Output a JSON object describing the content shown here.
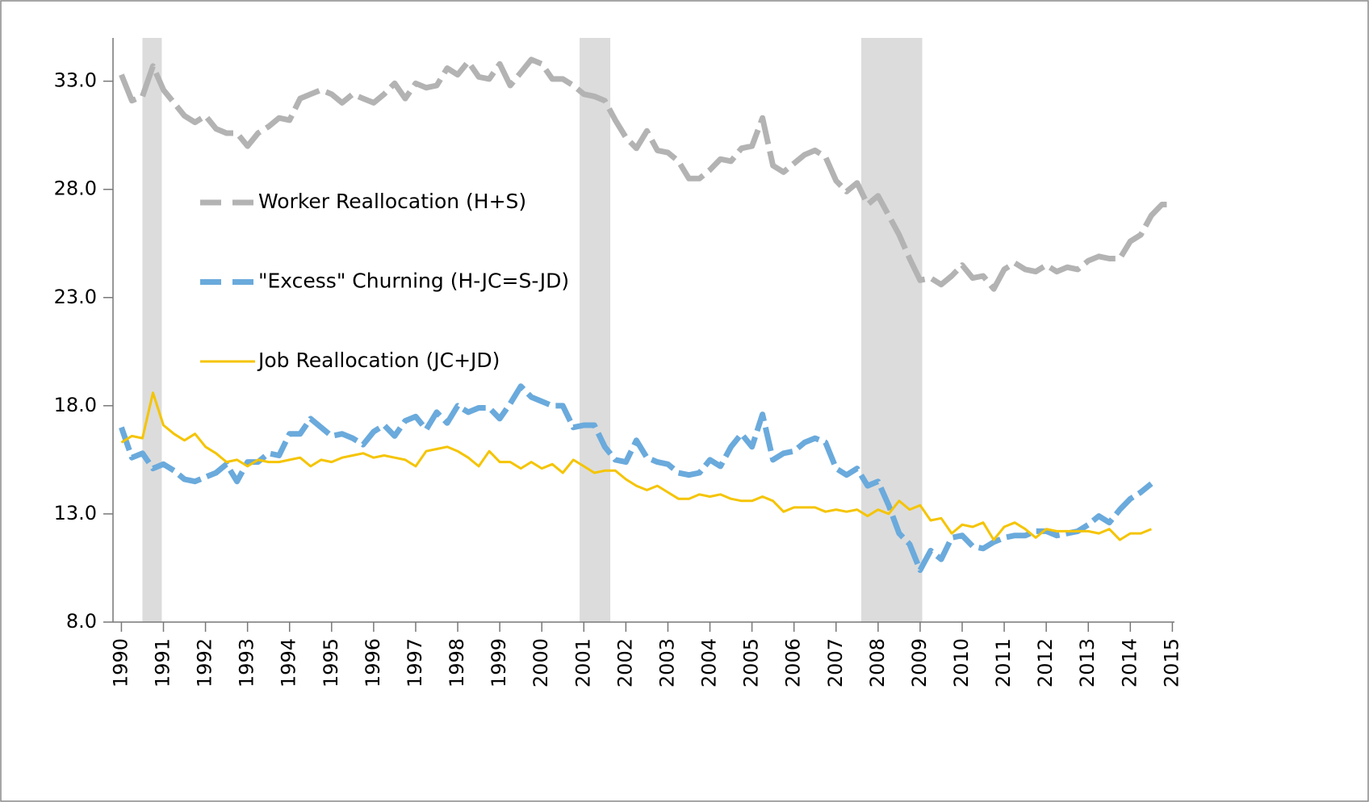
{
  "chart_data": {
    "type": "line",
    "x": [
      1990,
      1990.25,
      1990.5,
      1990.75,
      1991,
      1991.25,
      1991.5,
      1991.75,
      1992,
      1992.25,
      1992.5,
      1992.75,
      1993,
      1993.25,
      1993.5,
      1993.75,
      1994,
      1994.25,
      1994.5,
      1994.75,
      1995,
      1995.25,
      1995.5,
      1995.75,
      1996,
      1996.25,
      1996.5,
      1996.75,
      1997,
      1997.25,
      1997.5,
      1997.75,
      1998,
      1998.25,
      1998.5,
      1998.75,
      1999,
      1999.25,
      1999.5,
      1999.75,
      2000,
      2000.25,
      2000.5,
      2000.75,
      2001,
      2001.25,
      2001.5,
      2001.75,
      2002,
      2002.25,
      2002.5,
      2002.75,
      2003,
      2003.25,
      2003.5,
      2003.75,
      2004,
      2004.25,
      2004.5,
      2004.75,
      2005,
      2005.25,
      2005.5,
      2005.75,
      2006,
      2006.25,
      2006.5,
      2006.75,
      2007,
      2007.25,
      2007.5,
      2007.75,
      2008,
      2008.25,
      2008.5,
      2008.75,
      2009,
      2009.25,
      2009.5,
      2009.75,
      2010,
      2010.25,
      2010.5,
      2010.75,
      2011,
      2011.25,
      2011.5,
      2011.75,
      2012,
      2012.25,
      2012.5,
      2012.75,
      2013,
      2013.25,
      2013.5,
      2013.75,
      2014,
      2014.25,
      2014.5,
      2014.75,
      2015
    ],
    "series": [
      {
        "name": "Worker Reallocation (H+S)",
        "color": "#b3b3b3",
        "line_style": "dashed",
        "values": [
          33.3,
          32.1,
          32.3,
          33.7,
          32.6,
          32.0,
          31.4,
          31.1,
          31.4,
          30.8,
          30.6,
          30.6,
          30.0,
          30.6,
          30.9,
          31.3,
          31.2,
          32.2,
          32.4,
          32.6,
          32.4,
          32.0,
          32.4,
          32.2,
          32.0,
          32.4,
          32.9,
          32.2,
          32.9,
          32.7,
          32.8,
          33.6,
          33.3,
          33.9,
          33.2,
          33.1,
          33.8,
          32.8,
          33.4,
          34.0,
          33.8,
          33.1,
          33.1,
          32.8,
          32.4,
          32.3,
          32.1,
          31.2,
          30.4,
          29.9,
          30.7,
          29.8,
          29.7,
          29.3,
          28.5,
          28.5,
          28.9,
          29.4,
          29.3,
          29.9,
          30.0,
          31.3,
          29.1,
          28.8,
          29.2,
          29.6,
          29.8,
          29.5,
          28.4,
          27.9,
          28.3,
          27.3,
          27.7,
          26.8,
          25.9,
          24.8,
          23.8,
          23.9,
          23.6,
          24.0,
          24.5,
          23.9,
          24.0,
          23.4,
          24.3,
          24.6,
          24.3,
          24.2,
          24.5,
          24.2,
          24.4,
          24.3,
          24.7,
          24.9,
          24.8,
          24.8,
          25.6,
          25.9,
          26.8,
          27.3,
          27.3
        ]
      },
      {
        "name": "\"Excess\" Churning (H-JC=S-JD)",
        "color": "#6aaadc",
        "line_style": "dashed",
        "values": [
          17.0,
          15.6,
          15.8,
          15.1,
          15.3,
          15.0,
          14.6,
          14.5,
          14.7,
          14.9,
          15.3,
          14.5,
          15.4,
          15.4,
          15.8,
          15.7,
          16.7,
          16.7,
          17.4,
          17.0,
          16.6,
          16.7,
          16.5,
          16.2,
          16.8,
          17.1,
          16.6,
          17.3,
          17.5,
          16.9,
          17.7,
          17.2,
          18.0,
          17.7,
          17.9,
          17.9,
          17.4,
          18.1,
          18.9,
          18.4,
          18.2,
          18.0,
          18.0,
          17.0,
          17.1,
          17.1,
          16.1,
          15.5,
          15.4,
          16.4,
          15.6,
          15.4,
          15.3,
          14.9,
          14.8,
          14.9,
          15.5,
          15.2,
          16.1,
          16.7,
          16.1,
          17.6,
          15.5,
          15.8,
          15.9,
          16.3,
          16.5,
          16.3,
          15.1,
          14.8,
          15.1,
          14.3,
          14.5,
          13.4,
          12.1,
          11.6,
          10.4,
          11.3,
          10.9,
          11.9,
          12.0,
          11.5,
          11.4,
          11.7,
          11.9,
          12.0,
          12.0,
          12.2,
          12.2,
          12.0,
          12.1,
          12.2,
          12.5,
          12.9,
          12.6,
          13.2,
          13.7,
          14.0,
          14.4,
          null,
          null
        ]
      },
      {
        "name": "Job Reallocation (JC+JD)",
        "color": "#f5c400",
        "line_style": "solid",
        "values": [
          16.3,
          16.6,
          16.5,
          18.6,
          17.1,
          16.7,
          16.4,
          16.7,
          16.1,
          15.8,
          15.4,
          15.5,
          15.2,
          15.5,
          15.4,
          15.4,
          15.5,
          15.6,
          15.2,
          15.5,
          15.4,
          15.6,
          15.7,
          15.8,
          15.6,
          15.7,
          15.6,
          15.5,
          15.2,
          15.9,
          16.0,
          16.1,
          15.9,
          15.6,
          15.2,
          15.9,
          15.4,
          15.4,
          15.1,
          15.4,
          15.1,
          15.3,
          14.9,
          15.5,
          15.2,
          14.9,
          15.0,
          15.0,
          14.6,
          14.3,
          14.1,
          14.3,
          14.0,
          13.7,
          13.7,
          13.9,
          13.8,
          13.9,
          13.7,
          13.6,
          13.6,
          13.8,
          13.6,
          13.1,
          13.3,
          13.3,
          13.3,
          13.1,
          13.2,
          13.1,
          13.2,
          12.9,
          13.2,
          13.0,
          13.6,
          13.2,
          13.4,
          12.7,
          12.8,
          12.1,
          12.5,
          12.4,
          12.6,
          11.8,
          12.4,
          12.6,
          12.3,
          11.9,
          12.3,
          12.2,
          12.2,
          12.2,
          12.2,
          12.1,
          12.3,
          11.8,
          12.1,
          12.1,
          12.3,
          null,
          null
        ]
      }
    ],
    "shaded_periods": [
      [
        1990.5,
        1990.96
      ],
      [
        2000.9,
        2001.63
      ],
      [
        2007.6,
        2009.05
      ]
    ],
    "shade_color": "#dcdcdc",
    "xlim": [
      1989.8,
      2015.05
    ],
    "xticks": [
      1990,
      1991,
      1992,
      1993,
      1994,
      1995,
      1996,
      1997,
      1998,
      1999,
      2000,
      2001,
      2002,
      2003,
      2004,
      2005,
      2006,
      2007,
      2008,
      2009,
      2010,
      2011,
      2012,
      2013,
      2014,
      2015
    ],
    "ylim": [
      8,
      35
    ],
    "yticks": [
      {
        "value": 8,
        "label": "8.0"
      },
      {
        "value": 13,
        "label": "13.0"
      },
      {
        "value": 18,
        "label": "18.0"
      },
      {
        "value": 23,
        "label": "23.0"
      },
      {
        "value": 28,
        "label": "28.0"
      },
      {
        "value": 33,
        "label": "33.0"
      }
    ],
    "legend": "upper-left"
  }
}
